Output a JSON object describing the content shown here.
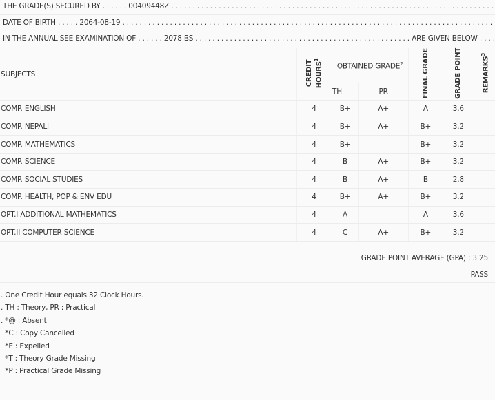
{
  "header": {
    "secured_by": "THE GRADE(S) SECURED BY . . . . . . 00409448Z . . . . . . . . . . . . . . . . . . . . . . . . . . . . . . . . . . . . . . . . . . . . . . . . . . . . . . . . . . . . . . . . . . . . . . . . . . . . . . . .",
    "dob": "DATE OF BIRTH . . . . . 2064-08-19 . . . . . . . . . . . . . . . . . . . . . . . . . . . . . . . . . . . . . . . . . . . . . . . . . . . . . . . . . . . . . . . . . . . . . . . . . . . . . . . . . . . . . . . .",
    "exam": "IN THE ANNUAL SEE EXAMINATION OF . . . . . . 2078 BS . . . . . . . . . . . . . . . . . . . . . . . . . . . . . . . . . . . . . . . . . . . . . . . . . . ARE GIVEN BELOW . . . . ."
  },
  "columns": {
    "subjects": "SUBJECTS",
    "credit": "CREDIT HOURS",
    "credit_sup": "1",
    "obtained": "OBTAINED GRADE",
    "obtained_sup": "2",
    "th": "TH",
    "pr": "PR",
    "final": "FINAL GRADE",
    "gp": "GRADE POINT",
    "remarks": "REMARKS",
    "remarks_sup": "3"
  },
  "rows": [
    {
      "subject": "COMP. ENGLISH",
      "credit": "4",
      "th": "B+",
      "pr": "A+",
      "final": "A",
      "gp": "3.6"
    },
    {
      "subject": "COMP. NEPALI",
      "credit": "4",
      "th": "B+",
      "pr": "A+",
      "final": "B+",
      "gp": "3.2"
    },
    {
      "subject": "COMP. MATHEMATICS",
      "credit": "4",
      "th": "B+",
      "pr": "",
      "final": "B+",
      "gp": "3.2"
    },
    {
      "subject": "COMP. SCIENCE",
      "credit": "4",
      "th": "B",
      "pr": "A+",
      "final": "B+",
      "gp": "3.2"
    },
    {
      "subject": "COMP. SOCIAL STUDIES",
      "credit": "4",
      "th": "B",
      "pr": "A+",
      "final": "B",
      "gp": "2.8"
    },
    {
      "subject": "COMP. HEALTH, POP & ENV EDU",
      "credit": "4",
      "th": "B+",
      "pr": "A+",
      "final": "B+",
      "gp": "3.2"
    },
    {
      "subject": "OPT.I ADDITIONAL MATHEMATICS",
      "credit": "4",
      "th": "A",
      "pr": "",
      "final": "A",
      "gp": "3.6"
    },
    {
      "subject": "OPT.II COMPUTER SCIENCE",
      "credit": "4",
      "th": "C",
      "pr": "A+",
      "final": "B+",
      "gp": "3.2"
    }
  ],
  "gpa": "GRADE POINT AVERAGE (GPA) : 3.25",
  "result": "PASS",
  "notes": [
    ". One Credit Hour equals 32 Clock Hours.",
    ". TH : Theory, PR : Practical",
    ". *@ : Absent",
    "  *C : Copy Cancelled",
    "  *E : Expelled",
    "  *T : Theory Grade Missing",
    "  *P : Practical Grade Missing"
  ]
}
